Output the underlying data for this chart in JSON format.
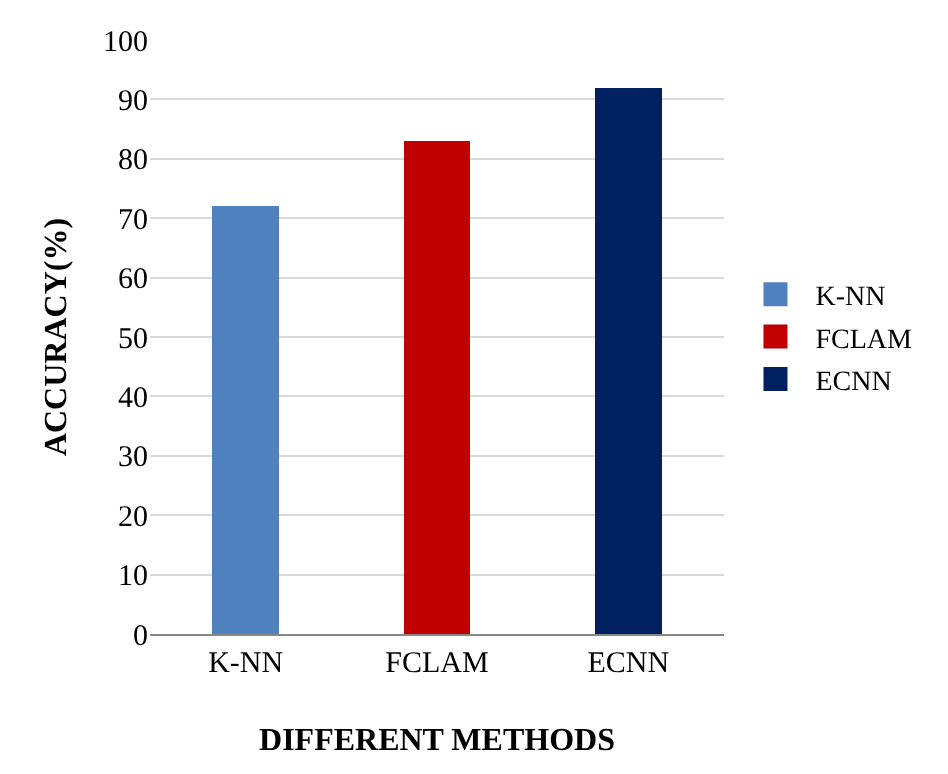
{
  "chart_data": {
    "type": "bar",
    "xlabel": "DIFFERENT METHODS",
    "ylabel": "ACCURACY(%)",
    "categories": [
      "K-NN",
      "FCLAM",
      "ECNN"
    ],
    "stacked": true,
    "series": [
      {
        "name": "K-NN",
        "color": "#4f81bd",
        "values": [
          72,
          null,
          null
        ]
      },
      {
        "name": "FCLAM",
        "color": "#c00000",
        "values": [
          null,
          83,
          null
        ]
      },
      {
        "name": "ECNN",
        "color": "#002060",
        "values": [
          null,
          null,
          92
        ]
      }
    ],
    "ylim": [
      0,
      100
    ],
    "yticks": [
      0,
      10,
      20,
      30,
      40,
      50,
      60,
      70,
      80,
      90,
      100
    ],
    "grid": "y",
    "legend": "right"
  }
}
